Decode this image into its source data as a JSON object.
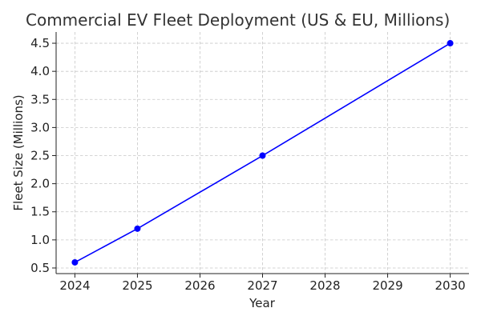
{
  "chart_data": {
    "type": "line",
    "title": "Commercial EV Fleet Deployment (US & EU, Millions)",
    "xlabel": "Year",
    "ylabel": "Fleet Size (Millions)",
    "x": [
      2024,
      2025,
      2027,
      2030
    ],
    "series": [
      {
        "name": "Fleet Size",
        "values": [
          0.6,
          1.2,
          2.5,
          4.5
        ],
        "color": "#0000ff"
      }
    ],
    "xlim": [
      2023.7,
      2030.3
    ],
    "ylim": [
      0.4,
      4.7
    ],
    "xticks": [
      "2024",
      "2025",
      "2026",
      "2027",
      "2028",
      "2029",
      "2030"
    ],
    "yticks": [
      "0.5",
      "1.0",
      "1.5",
      "2.0",
      "2.5",
      "3.0",
      "3.5",
      "4.0",
      "4.5"
    ],
    "grid": true,
    "legend": "none"
  }
}
